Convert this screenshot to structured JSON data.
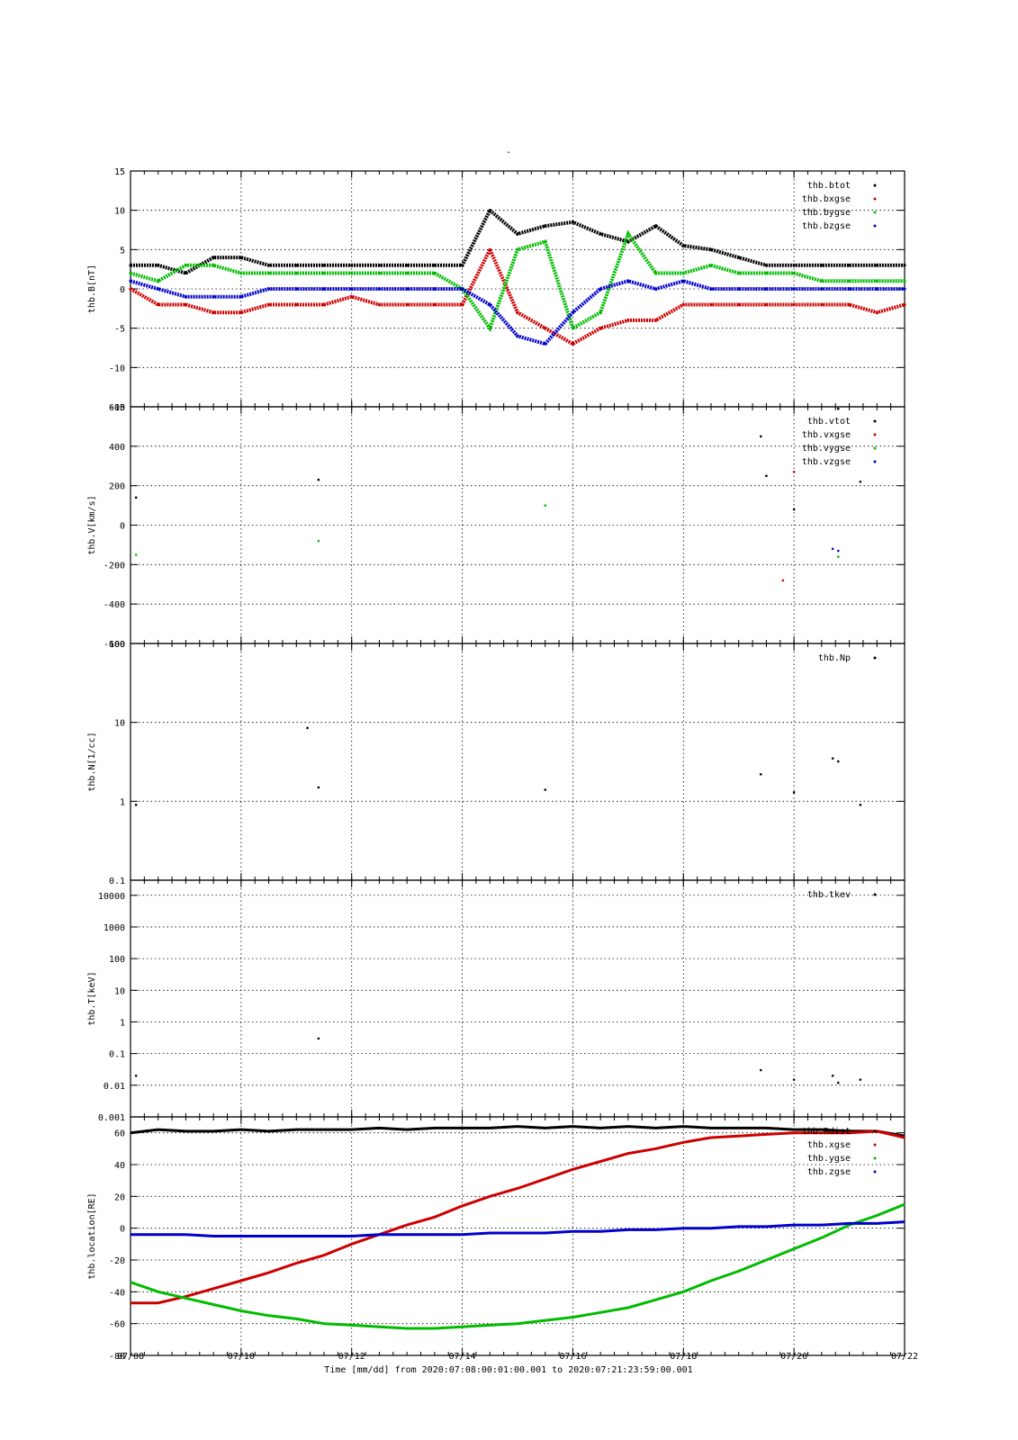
{
  "page": {
    "title_mark": "-"
  },
  "colors": {
    "black": "#000000",
    "red": "#cc0000",
    "green": "#00bb00",
    "blue": "#0000cc"
  },
  "chart_data": [
    {
      "type": "scatter",
      "ylabel": "thb.B[nT]",
      "ylim": [
        -15,
        15
      ],
      "ticks": [
        "15",
        "10",
        "5",
        "0",
        "-5",
        "-10",
        "-15"
      ],
      "tick_values": [
        15,
        10,
        5,
        0,
        -5,
        -10,
        -15
      ],
      "legend": [
        "thb.btot",
        "thb.bxgse",
        "thb.bygse",
        "thb.bzgse"
      ],
      "legend_colors": [
        "black",
        "red",
        "green",
        "blue"
      ],
      "series": [
        {
          "name": "thb.btot",
          "color": "black",
          "x": [
            0,
            0.5,
            1,
            1.5,
            2,
            2.5,
            3,
            3.5,
            4,
            4.5,
            5,
            5.5,
            6,
            6.5,
            7,
            7.5,
            8,
            8.5,
            9,
            9.5,
            10,
            10.5,
            11,
            11.5,
            12,
            12.5,
            13,
            13.5,
            14
          ],
          "y": [
            3,
            3,
            2,
            4,
            4,
            3,
            3,
            3,
            3,
            3,
            3,
            3,
            3,
            10,
            7,
            8,
            8.5,
            7,
            6,
            8,
            5.5,
            5,
            4,
            3,
            3,
            3,
            3,
            3,
            3
          ]
        },
        {
          "name": "thb.bxgse",
          "color": "red",
          "x": [
            0,
            0.5,
            1,
            1.5,
            2,
            2.5,
            3,
            3.5,
            4,
            4.5,
            5,
            5.5,
            6,
            6.5,
            7,
            7.5,
            8,
            8.5,
            9,
            9.5,
            10,
            10.5,
            11,
            11.5,
            12,
            12.5,
            13,
            13.5,
            14
          ],
          "y": [
            0,
            -2,
            -2,
            -3,
            -3,
            -2,
            -2,
            -2,
            -1,
            -2,
            -2,
            -2,
            -2,
            5,
            -3,
            -5,
            -7,
            -5,
            -4,
            -4,
            -2,
            -2,
            -2,
            -2,
            -2,
            -2,
            -2,
            -3,
            -2
          ]
        },
        {
          "name": "thb.bygse",
          "color": "green",
          "x": [
            0,
            0.5,
            1,
            1.5,
            2,
            2.5,
            3,
            3.5,
            4,
            4.5,
            5,
            5.5,
            6,
            6.5,
            7,
            7.5,
            8,
            8.5,
            9,
            9.5,
            10,
            10.5,
            11,
            11.5,
            12,
            12.5,
            13,
            13.5,
            14
          ],
          "y": [
            2,
            1,
            3,
            3,
            2,
            2,
            2,
            2,
            2,
            2,
            2,
            2,
            0,
            -5,
            5,
            6,
            -5,
            -3,
            7,
            2,
            2,
            3,
            2,
            2,
            2,
            1,
            1,
            1,
            1
          ]
        },
        {
          "name": "thb.bzgse",
          "color": "blue",
          "x": [
            0,
            0.5,
            1,
            1.5,
            2,
            2.5,
            3,
            3.5,
            4,
            4.5,
            5,
            5.5,
            6,
            6.5,
            7,
            7.5,
            8,
            8.5,
            9,
            9.5,
            10,
            10.5,
            11,
            11.5,
            12,
            12.5,
            13,
            13.5,
            14
          ],
          "y": [
            1,
            0,
            -1,
            -1,
            -1,
            0,
            0,
            0,
            0,
            0,
            0,
            0,
            0,
            -2,
            -6,
            -7,
            -3,
            0,
            1,
            0,
            1,
            0,
            0,
            0,
            0,
            0,
            0,
            0,
            0
          ]
        }
      ]
    },
    {
      "type": "scatter",
      "ylabel": "thb.V[km/s]",
      "ylim": [
        -600,
        600
      ],
      "ticks": [
        "600",
        "400",
        "200",
        "0",
        "-200",
        "-400",
        "-600"
      ],
      "tick_values": [
        600,
        400,
        200,
        0,
        -200,
        -400,
        -600
      ],
      "legend": [
        "thb.vtot",
        "thb.vxgse",
        "thb.vygse",
        "thb.vzgse"
      ],
      "legend_colors": [
        "black",
        "red",
        "green",
        "blue"
      ],
      "series": [
        {
          "name": "thb.vtot",
          "color": "black",
          "x": [
            0.1,
            3.4,
            11.4,
            11.5,
            12.0,
            12.8,
            13.2
          ],
          "y": [
            140,
            230,
            450,
            250,
            80,
            590,
            220
          ]
        },
        {
          "name": "thb.vxgse",
          "color": "red",
          "x": [
            11.8,
            12.0
          ],
          "y": [
            -280,
            270
          ]
        },
        {
          "name": "thb.vygse",
          "color": "green",
          "x": [
            0.1,
            3.4,
            7.5,
            12.8
          ],
          "y": [
            -150,
            -80,
            100,
            -160
          ]
        },
        {
          "name": "thb.vzgse",
          "color": "blue",
          "x": [
            12.7,
            12.8
          ],
          "y": [
            -120,
            -130
          ]
        }
      ]
    },
    {
      "type": "scatter",
      "ylabel": "thb.N[1/cc]",
      "yscale": "log",
      "ylim": [
        0.1,
        100
      ],
      "ticks": [
        "100",
        "10",
        "1",
        "0.1"
      ],
      "tick_values": [
        100,
        10,
        1,
        0.1
      ],
      "legend": [
        "thb.Np"
      ],
      "legend_colors": [
        "black"
      ],
      "series": [
        {
          "name": "thb.Np",
          "color": "black",
          "x": [
            0.1,
            3.2,
            3.4,
            7.5,
            11.4,
            12.0,
            12.7,
            12.8,
            13.2
          ],
          "y": [
            0.9,
            8.5,
            1.5,
            1.4,
            2.2,
            1.3,
            3.5,
            3.2,
            0.9
          ]
        }
      ]
    },
    {
      "type": "scatter",
      "ylabel": "thb.T[keV]",
      "yscale": "log",
      "ylim": [
        0.001,
        30000
      ],
      "ticks": [
        "10000",
        "1000",
        "100",
        "10",
        "1",
        "0.1",
        "0.01",
        "0.001"
      ],
      "tick_values": [
        10000,
        1000,
        100,
        10,
        1,
        0.1,
        0.01,
        0.001
      ],
      "legend": [
        "thb.tkev"
      ],
      "legend_colors": [
        "black"
      ],
      "series": [
        {
          "name": "thb.tkev",
          "color": "black",
          "x": [
            0.1,
            3.4,
            11.4,
            12.0,
            12.7,
            12.8,
            13.2
          ],
          "y": [
            0.02,
            0.3,
            0.03,
            0.015,
            0.02,
            0.012,
            0.015
          ]
        }
      ]
    },
    {
      "type": "line",
      "ylabel": "thb.location[RE]",
      "ylim": [
        -80,
        70
      ],
      "ticks": [
        "60",
        "40",
        "20",
        "0",
        "-20",
        "-40",
        "-60",
        "-80"
      ],
      "tick_values": [
        60,
        40,
        20,
        0,
        -20,
        -40,
        -60,
        -80
      ],
      "legend": [
        "thb.Rdist",
        "thb.xgse",
        "thb.ygse",
        "thb.zgse"
      ],
      "legend_colors": [
        "black",
        "red",
        "green",
        "blue"
      ],
      "series": [
        {
          "name": "thb.Rdist",
          "color": "black",
          "x": [
            0,
            0.5,
            1,
            1.5,
            2,
            2.5,
            3,
            3.5,
            4,
            4.5,
            5,
            5.5,
            6,
            6.5,
            7,
            7.5,
            8,
            8.5,
            9,
            9.5,
            10,
            10.5,
            11,
            11.5,
            12,
            12.5,
            13,
            13.5,
            14
          ],
          "y": [
            60,
            62,
            61,
            61,
            62,
            61,
            62,
            62,
            62,
            63,
            62,
            63,
            63,
            63,
            64,
            63,
            64,
            63,
            64,
            63,
            64,
            63,
            63,
            63,
            62,
            62,
            61,
            61,
            58
          ]
        },
        {
          "name": "thb.xgse",
          "color": "red",
          "x": [
            0,
            0.5,
            1,
            1.5,
            2,
            2.5,
            3,
            3.5,
            4,
            4.5,
            5,
            5.5,
            6,
            6.5,
            7,
            7.5,
            8,
            8.5,
            9,
            9.5,
            10,
            10.5,
            11,
            11.5,
            12,
            12.5,
            13,
            13.5,
            14
          ],
          "y": [
            -47,
            -47,
            -43,
            -38,
            -33,
            -28,
            -22,
            -17,
            -10,
            -4,
            2,
            7,
            14,
            20,
            25,
            31,
            37,
            42,
            47,
            50,
            54,
            57,
            58,
            59,
            60,
            60,
            60,
            61,
            57
          ]
        },
        {
          "name": "thb.ygse",
          "color": "green",
          "x": [
            0,
            0.5,
            1,
            1.5,
            2,
            2.5,
            3,
            3.5,
            4,
            4.5,
            5,
            5.5,
            6,
            6.5,
            7,
            7.5,
            8,
            8.5,
            9,
            9.5,
            10,
            10.5,
            11,
            11.5,
            12,
            12.5,
            13,
            13.5,
            14
          ],
          "y": [
            -34,
            -40,
            -44,
            -48,
            -52,
            -55,
            -57,
            -60,
            -61,
            -62,
            -63,
            -63,
            -62,
            -61,
            -60,
            -58,
            -56,
            -53,
            -50,
            -45,
            -40,
            -33,
            -27,
            -20,
            -13,
            -6,
            2,
            8,
            15
          ]
        },
        {
          "name": "thb.zgse",
          "color": "blue",
          "x": [
            0,
            0.5,
            1,
            1.5,
            2,
            2.5,
            3,
            3.5,
            4,
            4.5,
            5,
            5.5,
            6,
            6.5,
            7,
            7.5,
            8,
            8.5,
            9,
            9.5,
            10,
            10.5,
            11,
            11.5,
            12,
            12.5,
            13,
            13.5,
            14
          ],
          "y": [
            -4,
            -4,
            -4,
            -5,
            -5,
            -5,
            -5,
            -5,
            -5,
            -4,
            -4,
            -4,
            -4,
            -3,
            -3,
            -3,
            -2,
            -2,
            -1,
            -1,
            0,
            0,
            1,
            1,
            2,
            2,
            3,
            3,
            4
          ]
        }
      ]
    }
  ],
  "xaxis": {
    "tick_labels": [
      "07/08",
      "07/10",
      "07/12",
      "07/14",
      "07/16",
      "07/18",
      "07/20",
      "07/22"
    ],
    "tick_values": [
      0,
      2,
      4,
      6,
      8,
      10,
      12,
      14
    ],
    "xlim": [
      0,
      14
    ],
    "label": "Time [mm/dd]  from 2020:07:08:00:01:00.001  to  2020:07:21:23:59:00.001"
  }
}
